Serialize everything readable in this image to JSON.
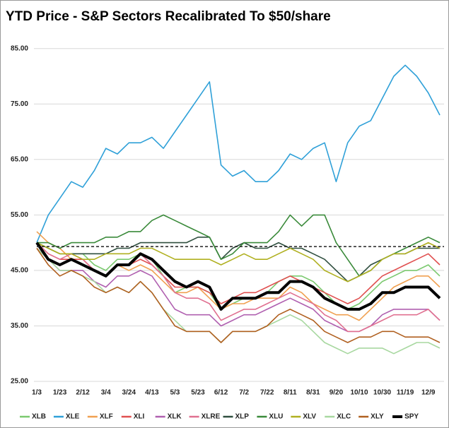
{
  "chart_data": {
    "type": "line",
    "title": "YTD Price - S&P Sectors Recalibrated To $50/share",
    "categories": [
      "1/3",
      null,
      "1/23",
      null,
      "2/12",
      null,
      "3/4",
      null,
      "3/24",
      null,
      "4/13",
      null,
      "5/3",
      null,
      "5/23",
      null,
      "6/12",
      null,
      "7/2",
      null,
      "7/22",
      null,
      "8/11",
      null,
      "8/31",
      null,
      "9/20",
      null,
      "10/10",
      null,
      "10/30",
      null,
      "11/19",
      null,
      "12/9",
      null
    ],
    "ylim": [
      25,
      87
    ],
    "yticks": [
      {
        "value": 25,
        "label": "25.00"
      },
      {
        "value": 35,
        "label": "35.00"
      },
      {
        "value": 45,
        "label": "45.00"
      },
      {
        "value": 55,
        "label": "55.00"
      },
      {
        "value": 65,
        "label": "65.00"
      },
      {
        "value": 75,
        "label": "75.00"
      },
      {
        "value": 85,
        "label": "85.00"
      }
    ],
    "grid": true,
    "reference_line": 49.3,
    "series": [
      {
        "name": "XLB",
        "color": "#7bc96f",
        "values": [
          50,
          49,
          48,
          48,
          48,
          46,
          45,
          47,
          47,
          48,
          47,
          44,
          41,
          42,
          42,
          41,
          38,
          39,
          40,
          40,
          41,
          43,
          44,
          44,
          43,
          41,
          39,
          38,
          39,
          41,
          43,
          44,
          45,
          45,
          46,
          44
        ]
      },
      {
        "name": "XLE",
        "color": "#2fa0d8",
        "values": [
          50,
          55,
          58,
          61,
          60,
          63,
          67,
          66,
          68,
          68,
          69,
          67,
          70,
          73,
          76,
          79,
          64,
          62,
          63,
          61,
          61,
          63,
          66,
          65,
          67,
          68,
          61,
          68,
          71,
          72,
          76,
          80,
          82,
          80,
          77,
          73
        ]
      },
      {
        "name": "XLF",
        "color": "#f0a050",
        "values": [
          52,
          50,
          49,
          47,
          47,
          45,
          44,
          46,
          45,
          46,
          45,
          43,
          41,
          41,
          42,
          40,
          38,
          39,
          39,
          40,
          40,
          40,
          42,
          41,
          39,
          38,
          37,
          37,
          36,
          38,
          40,
          42,
          43,
          44,
          44,
          42
        ]
      },
      {
        "name": "XLI",
        "color": "#e05050",
        "values": [
          50,
          48,
          47,
          47,
          47,
          45,
          44,
          46,
          46,
          47,
          46,
          44,
          42,
          42,
          42,
          41,
          39,
          40,
          41,
          41,
          42,
          43,
          44,
          43,
          42,
          41,
          40,
          39,
          40,
          42,
          44,
          45,
          46,
          47,
          48,
          46
        ]
      },
      {
        "name": "XLK",
        "color": "#b060b0",
        "values": [
          49,
          47,
          45,
          45,
          45,
          43,
          42,
          44,
          44,
          45,
          44,
          41,
          38,
          37,
          37,
          37,
          35,
          36,
          37,
          37,
          38,
          39,
          40,
          39,
          38,
          36,
          35,
          34,
          34,
          35,
          37,
          38,
          38,
          38,
          38,
          36
        ]
      },
      {
        "name": "XLRE",
        "color": "#e07090",
        "values": [
          50,
          48,
          47,
          48,
          47,
          45,
          44,
          46,
          46,
          48,
          46,
          44,
          41,
          40,
          40,
          39,
          36,
          37,
          38,
          38,
          39,
          40,
          41,
          40,
          39,
          37,
          36,
          34,
          34,
          35,
          36,
          37,
          37,
          37,
          38,
          36
        ]
      },
      {
        "name": "XLP",
        "color": "#2f4f3f",
        "values": [
          50,
          49,
          48,
          48,
          48,
          48,
          48,
          49,
          49,
          50,
          50,
          50,
          50,
          50,
          51,
          51,
          47,
          49,
          50,
          49,
          49,
          50,
          49,
          49,
          48,
          47,
          45,
          43,
          44,
          46,
          47,
          48,
          48,
          49,
          49,
          49
        ]
      },
      {
        "name": "XLU",
        "color": "#3a8a3a",
        "values": [
          50,
          50,
          49,
          50,
          50,
          50,
          51,
          51,
          52,
          52,
          54,
          55,
          54,
          53,
          52,
          51,
          47,
          48,
          50,
          50,
          50,
          52,
          55,
          53,
          55,
          55,
          50,
          47,
          44,
          45,
          47,
          48,
          49,
          50,
          51,
          50
        ]
      },
      {
        "name": "XLV",
        "color": "#b0b020",
        "values": [
          50,
          49,
          48,
          48,
          47,
          47,
          48,
          48,
          48,
          49,
          49,
          48,
          47,
          47,
          47,
          47,
          46,
          47,
          48,
          47,
          47,
          48,
          49,
          48,
          47,
          45,
          44,
          43,
          44,
          45,
          47,
          48,
          48,
          49,
          50,
          49
        ]
      },
      {
        "name": "XLC",
        "color": "#a8d8a0",
        "values": [
          49,
          47,
          45,
          45,
          44,
          43,
          41,
          42,
          41,
          43,
          41,
          38,
          36,
          34,
          34,
          34,
          32,
          34,
          34,
          34,
          35,
          36,
          37,
          36,
          34,
          32,
          31,
          30,
          31,
          31,
          31,
          30,
          31,
          32,
          32,
          31
        ]
      },
      {
        "name": "XLY",
        "color": "#b06020",
        "values": [
          49,
          46,
          44,
          45,
          44,
          42,
          41,
          42,
          41,
          43,
          41,
          38,
          35,
          34,
          34,
          34,
          32,
          34,
          34,
          34,
          35,
          37,
          38,
          37,
          36,
          34,
          33,
          32,
          33,
          33,
          34,
          34,
          33,
          33,
          33,
          32
        ]
      },
      {
        "name": "SPY",
        "color": "#000000",
        "values": [
          50,
          47,
          46,
          47,
          46,
          45,
          44,
          46,
          46,
          48,
          47,
          45,
          43,
          42,
          43,
          42,
          38,
          40,
          40,
          40,
          41,
          41,
          43,
          43,
          42,
          40,
          39,
          38,
          38,
          39,
          41,
          41,
          42,
          42,
          42,
          40
        ]
      }
    ]
  }
}
